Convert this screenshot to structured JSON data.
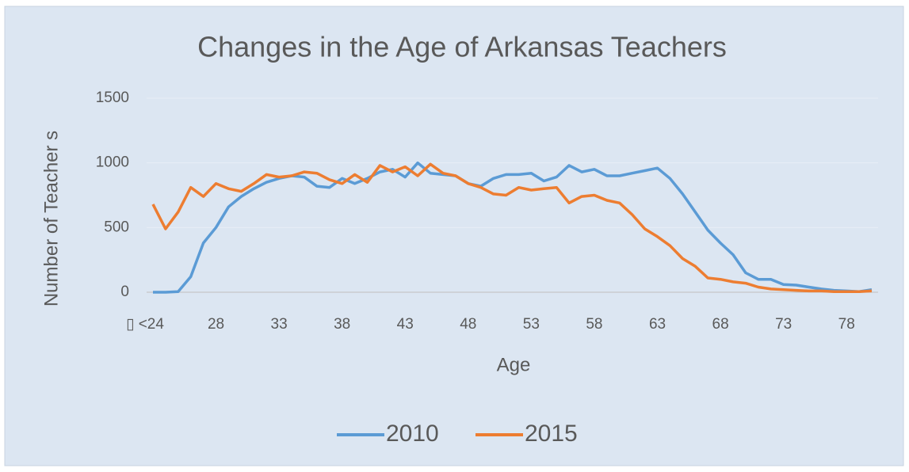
{
  "chart_data": {
    "type": "line",
    "title": "Changes in the Age of Arkansas Teachers",
    "xlabel": "Age",
    "ylabel": "Number of Teacher s",
    "categories": [
      "▯ <24",
      null,
      null,
      null,
      null,
      "28",
      null,
      null,
      null,
      null,
      "33",
      null,
      null,
      null,
      null,
      "38",
      null,
      null,
      null,
      null,
      "43",
      null,
      null,
      null,
      null,
      "48",
      null,
      null,
      null,
      null,
      "53",
      null,
      null,
      null,
      null,
      "58",
      null,
      null,
      null,
      null,
      "63",
      null,
      null,
      null,
      null,
      "68",
      null,
      null,
      null,
      null,
      "73",
      null,
      null,
      null,
      null,
      "78",
      null,
      null
    ],
    "series": [
      {
        "name": "2010",
        "color": "#5b9bd5",
        "values": [
          0,
          0,
          5,
          120,
          380,
          500,
          660,
          740,
          800,
          850,
          880,
          900,
          890,
          820,
          810,
          880,
          840,
          880,
          930,
          950,
          890,
          1000,
          920,
          910,
          900,
          840,
          820,
          880,
          910,
          910,
          920,
          860,
          890,
          980,
          930,
          950,
          900,
          900,
          920,
          940,
          960,
          880,
          760,
          620,
          480,
          380,
          290,
          150,
          100,
          100,
          60,
          55,
          40,
          25,
          15,
          10,
          5,
          20
        ]
      },
      {
        "name": "2015",
        "color": "#ed7d31",
        "values": [
          680,
          490,
          620,
          810,
          740,
          840,
          800,
          780,
          840,
          910,
          890,
          900,
          930,
          920,
          870,
          840,
          910,
          850,
          980,
          930,
          970,
          900,
          990,
          920,
          900,
          840,
          810,
          760,
          750,
          810,
          790,
          800,
          810,
          690,
          740,
          750,
          710,
          690,
          600,
          490,
          430,
          360,
          260,
          200,
          110,
          100,
          80,
          70,
          40,
          25,
          20,
          15,
          10,
          10,
          5,
          5,
          5,
          10
        ]
      }
    ],
    "ylim": [
      0,
      1500
    ],
    "yticks": [
      0,
      500,
      1000,
      1500
    ],
    "grid": true,
    "legend": "bottom"
  }
}
